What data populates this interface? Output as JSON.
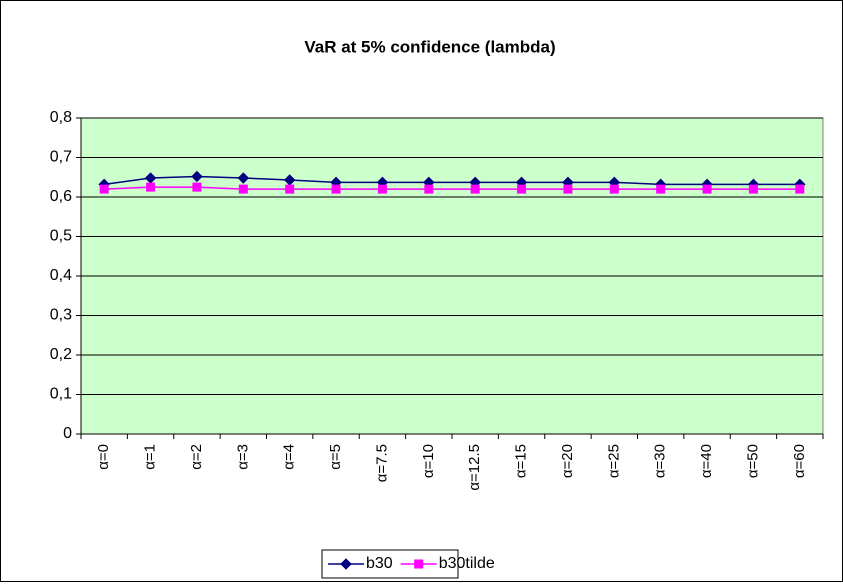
{
  "chart_data": {
    "type": "line",
    "title": "VaR at 5% confidence (lambda)",
    "categories": [
      "α=0",
      "α=1",
      "α=2",
      "α=3",
      "α=4",
      "α=5",
      "α=7.5",
      "α=10",
      "α=12.5",
      "α=15",
      "α=20",
      "α=25",
      "α=30",
      "α=40",
      "α=50",
      "α=60"
    ],
    "series": [
      {
        "name": "b30",
        "color": "#000080",
        "marker": "diamond",
        "values": [
          0.632,
          0.648,
          0.652,
          0.648,
          0.643,
          0.637,
          0.637,
          0.637,
          0.637,
          0.637,
          0.637,
          0.637,
          0.632,
          0.632,
          0.632,
          0.632
        ]
      },
      {
        "name": "b30tilde",
        "color": "#ff00ff",
        "marker": "square",
        "values": [
          0.62,
          0.625,
          0.625,
          0.62,
          0.62,
          0.62,
          0.62,
          0.62,
          0.62,
          0.62,
          0.62,
          0.62,
          0.62,
          0.62,
          0.62,
          0.62
        ]
      }
    ],
    "ylim": [
      0,
      0.8
    ],
    "yticks": [
      0,
      {
        "value": 0.1,
        "label": "0,1"
      },
      {
        "value": 0.2,
        "label": "0,2"
      },
      {
        "value": 0.3,
        "label": "0,3"
      },
      {
        "value": 0.4,
        "label": "0,4"
      },
      {
        "value": 0.5,
        "label": "0,5"
      },
      {
        "value": 0.6,
        "label": "0,6"
      },
      {
        "value": 0.7,
        "label": "0,7"
      },
      {
        "value": 0.8,
        "label": "0,8"
      }
    ],
    "grid": true,
    "plot_background": "#ccffcc",
    "legend": "bottom"
  }
}
